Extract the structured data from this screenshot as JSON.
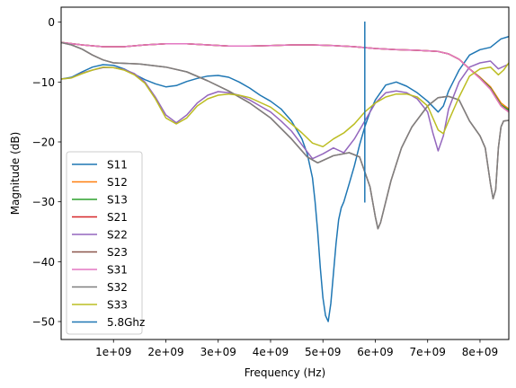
{
  "chart_data": {
    "type": "line",
    "title": "",
    "xlabel": "Frequency (Hz)",
    "ylabel": "Magnitude (dB)",
    "xlim": [
      0,
      8550000000.0
    ],
    "ylim": [
      -53,
      2.5
    ],
    "grid": false,
    "legend_position": "lower-left",
    "x_ticks": [
      {
        "value": 1000000000.0,
        "label": "1e+09"
      },
      {
        "value": 2000000000.0,
        "label": "2e+09"
      },
      {
        "value": 3000000000.0,
        "label": "3e+09"
      },
      {
        "value": 4000000000.0,
        "label": "4e+09"
      },
      {
        "value": 5000000000.0,
        "label": "5e+09"
      },
      {
        "value": 6000000000.0,
        "label": "6e+09"
      },
      {
        "value": 7000000000.0,
        "label": "7e+09"
      },
      {
        "value": 8000000000.0,
        "label": "8e+09"
      }
    ],
    "y_ticks": [
      {
        "value": 0,
        "label": "0"
      },
      {
        "value": -10,
        "label": "−10"
      },
      {
        "value": -20,
        "label": "−20"
      },
      {
        "value": -30,
        "label": "−30"
      },
      {
        "value": -40,
        "label": "−40"
      },
      {
        "value": -50,
        "label": "−50"
      }
    ],
    "series": [
      {
        "name": "S11",
        "color": "#1f77b4",
        "x": [
          0,
          200000000.0,
          400000000.0,
          600000000.0,
          800000000.0,
          1000000000.0,
          1200000000.0,
          1400000000.0,
          1600000000.0,
          1800000000.0,
          2000000000.0,
          2200000000.0,
          2400000000.0,
          2600000000.0,
          2800000000.0,
          3000000000.0,
          3200000000.0,
          3400000000.0,
          3600000000.0,
          3800000000.0,
          4000000000.0,
          4200000000.0,
          4400000000.0,
          4600000000.0,
          4700000000.0,
          4800000000.0,
          4850000000.0,
          4900000000.0,
          4950000000.0,
          5000000000.0,
          5050000000.0,
          5100000000.0,
          5150000000.0,
          5200000000.0,
          5250000000.0,
          5300000000.0,
          5350000000.0,
          5400000000.0,
          5500000000.0,
          5600000000.0,
          5700000000.0,
          5800000000.0,
          5900000000.0,
          6000000000.0,
          6200000000.0,
          6400000000.0,
          6600000000.0,
          6800000000.0,
          7000000000.0,
          7200000000.0,
          7300000000.0,
          7400000000.0,
          7600000000.0,
          7800000000.0,
          8000000000.0,
          8200000000.0,
          8400000000.0,
          8550000000.0
        ],
        "values": [
          -9.5,
          -9.2,
          -8.3,
          -7.5,
          -7.1,
          -7.2,
          -7.8,
          -8.7,
          -9.6,
          -10.3,
          -10.8,
          -10.6,
          -9.9,
          -9.4,
          -9.0,
          -8.9,
          -9.2,
          -10.0,
          -11.0,
          -12.2,
          -13.2,
          -14.5,
          -16.5,
          -19.5,
          -22.0,
          -26.0,
          -30.0,
          -35.0,
          -41.0,
          -46.0,
          -49.0,
          -50.0,
          -47.0,
          -42.0,
          -37.0,
          -33.0,
          -31.0,
          -30.0,
          -27.0,
          -24.0,
          -20.5,
          -17.5,
          -15.0,
          -13.0,
          -10.5,
          -10.0,
          -10.7,
          -11.8,
          -13.2,
          -15.0,
          -14.0,
          -11.5,
          -8.0,
          -5.5,
          -4.6,
          -4.2,
          -2.8,
          -2.4
        ]
      },
      {
        "name": "S12",
        "color": "#ff7f0e",
        "x": [
          0,
          400000000.0,
          800000000.0,
          1200000000.0,
          1600000000.0,
          2000000000.0,
          2400000000.0,
          2800000000.0,
          3200000000.0,
          3600000000.0,
          4000000000.0,
          4400000000.0,
          4800000000.0,
          5200000000.0,
          5600000000.0,
          6000000000.0,
          6400000000.0,
          6800000000.0,
          7200000000.0,
          7400000000.0,
          7600000000.0,
          7800000000.0,
          8000000000.0,
          8200000000.0,
          8400000000.0,
          8550000000.0
        ],
        "values": [
          -3.4,
          -3.8,
          -4.1,
          -4.1,
          -3.8,
          -3.6,
          -3.6,
          -3.8,
          -4.0,
          -4.0,
          -3.9,
          -3.8,
          -3.8,
          -3.9,
          -4.1,
          -4.4,
          -4.6,
          -4.7,
          -4.9,
          -5.3,
          -6.2,
          -7.8,
          -9.2,
          -10.8,
          -13.5,
          -14.5
        ]
      },
      {
        "name": "S13",
        "color": "#2ca02c",
        "x": [
          0,
          400000000.0,
          800000000.0,
          1200000000.0,
          1600000000.0,
          2000000000.0,
          2400000000.0,
          2800000000.0,
          3200000000.0,
          3600000000.0,
          4000000000.0,
          4400000000.0,
          4800000000.0,
          5200000000.0,
          5600000000.0,
          6000000000.0,
          6400000000.0,
          6800000000.0,
          7200000000.0,
          7400000000.0,
          7600000000.0,
          7800000000.0,
          8000000000.0,
          8200000000.0,
          8400000000.0,
          8550000000.0
        ],
        "values": [
          -3.4,
          -3.8,
          -4.1,
          -4.1,
          -3.8,
          -3.6,
          -3.6,
          -3.8,
          -4.0,
          -4.0,
          -3.9,
          -3.8,
          -3.8,
          -3.9,
          -4.1,
          -4.4,
          -4.6,
          -4.7,
          -4.9,
          -5.3,
          -6.2,
          -7.8,
          -9.3,
          -11.0,
          -13.8,
          -14.7
        ]
      },
      {
        "name": "S21",
        "color": "#d62728",
        "x": [
          0,
          400000000.0,
          800000000.0,
          1200000000.0,
          1600000000.0,
          2000000000.0,
          2400000000.0,
          2800000000.0,
          3200000000.0,
          3600000000.0,
          4000000000.0,
          4400000000.0,
          4800000000.0,
          5200000000.0,
          5600000000.0,
          6000000000.0,
          6400000000.0,
          6800000000.0,
          7200000000.0,
          7400000000.0,
          7600000000.0,
          7800000000.0,
          8000000000.0,
          8200000000.0,
          8400000000.0,
          8550000000.0
        ],
        "values": [
          -3.4,
          -3.8,
          -4.1,
          -4.1,
          -3.8,
          -3.6,
          -3.6,
          -3.8,
          -4.0,
          -4.0,
          -3.9,
          -3.8,
          -3.8,
          -3.9,
          -4.1,
          -4.4,
          -4.6,
          -4.7,
          -4.9,
          -5.3,
          -6.2,
          -7.8,
          -9.4,
          -11.2,
          -14.0,
          -15.0
        ]
      },
      {
        "name": "S22",
        "color": "#9467bd",
        "x": [
          0,
          200000000.0,
          400000000.0,
          600000000.0,
          800000000.0,
          1000000000.0,
          1200000000.0,
          1400000000.0,
          1600000000.0,
          1800000000.0,
          2000000000.0,
          2200000000.0,
          2400000000.0,
          2600000000.0,
          2800000000.0,
          3000000000.0,
          3200000000.0,
          3400000000.0,
          3600000000.0,
          3800000000.0,
          4000000000.0,
          4200000000.0,
          4400000000.0,
          4600000000.0,
          4800000000.0,
          5000000000.0,
          5200000000.0,
          5400000000.0,
          5600000000.0,
          5800000000.0,
          6000000000.0,
          6200000000.0,
          6400000000.0,
          6600000000.0,
          6800000000.0,
          7000000000.0,
          7100000000.0,
          7200000000.0,
          7300000000.0,
          7400000000.0,
          7600000000.0,
          7800000000.0,
          8000000000.0,
          8200000000.0,
          8350000000.0,
          8450000000.0,
          8550000000.0
        ],
        "values": [
          -9.5,
          -9.3,
          -8.5,
          -8.0,
          -7.6,
          -7.6,
          -7.9,
          -8.6,
          -10.0,
          -12.5,
          -15.5,
          -16.8,
          -15.5,
          -13.5,
          -12.2,
          -11.6,
          -11.8,
          -12.2,
          -13.0,
          -14.0,
          -15.0,
          -16.5,
          -18.2,
          -20.5,
          -22.8,
          -22.0,
          -21.0,
          -21.8,
          -19.5,
          -16.5,
          -13.5,
          -11.8,
          -11.5,
          -11.8,
          -12.8,
          -15.0,
          -18.5,
          -21.5,
          -19.0,
          -14.5,
          -10.0,
          -7.5,
          -6.8,
          -6.5,
          -7.8,
          -7.4,
          -7.0
        ]
      },
      {
        "name": "S23",
        "color": "#8c564b",
        "x": [
          0,
          200000000.0,
          400000000.0,
          600000000.0,
          800000000.0,
          1000000000.0,
          1500000000.0,
          2000000000.0,
          2400000000.0,
          2800000000.0,
          3200000000.0,
          3600000000.0,
          4000000000.0,
          4400000000.0,
          4700000000.0,
          4900000000.0,
          5200000000.0,
          5500000000.0,
          5700000000.0,
          5900000000.0,
          6000000000.0,
          6050000000.0,
          6100000000.0,
          6300000000.0,
          6500000000.0,
          6700000000.0,
          7000000000.0,
          7200000000.0,
          7400000000.0,
          7600000000.0,
          7800000000.0,
          8000000000.0,
          8100000000.0,
          8200000000.0,
          8250000000.0,
          8300000000.0,
          8350000000.0,
          8400000000.0,
          8450000000.0,
          8550000000.0
        ],
        "values": [
          -3.4,
          -3.8,
          -4.5,
          -5.5,
          -6.3,
          -6.8,
          -7.0,
          -7.5,
          -8.3,
          -9.8,
          -11.5,
          -13.5,
          -16.0,
          -19.5,
          -22.5,
          -23.5,
          -22.3,
          -21.8,
          -22.5,
          -27.5,
          -32.5,
          -34.5,
          -33.5,
          -26.5,
          -21.0,
          -17.5,
          -14.0,
          -12.6,
          -12.4,
          -13.0,
          -16.5,
          -19.0,
          -21.0,
          -27.0,
          -29.5,
          -28.0,
          -21.0,
          -17.5,
          -16.5,
          -16.4
        ]
      },
      {
        "name": "S31",
        "color": "#e377c2",
        "x": [
          0,
          400000000.0,
          800000000.0,
          1200000000.0,
          1600000000.0,
          2000000000.0,
          2400000000.0,
          2800000000.0,
          3200000000.0,
          3600000000.0,
          4000000000.0,
          4400000000.0,
          4800000000.0,
          5200000000.0,
          5600000000.0,
          6000000000.0,
          6400000000.0,
          6800000000.0,
          7200000000.0,
          7400000000.0,
          7600000000.0,
          7800000000.0,
          8000000000.0,
          8200000000.0,
          8400000000.0,
          8550000000.0
        ],
        "values": [
          -3.4,
          -3.8,
          -4.1,
          -4.1,
          -3.8,
          -3.6,
          -3.6,
          -3.8,
          -4.0,
          -4.0,
          -3.9,
          -3.8,
          -3.8,
          -3.9,
          -4.1,
          -4.4,
          -4.6,
          -4.7,
          -4.9,
          -5.3,
          -6.2,
          -7.8,
          -9.4,
          -11.2,
          -14.0,
          -15.0
        ]
      },
      {
        "name": "S32",
        "color": "#7f7f7f",
        "x": [
          0,
          200000000.0,
          400000000.0,
          600000000.0,
          800000000.0,
          1000000000.0,
          1500000000.0,
          2000000000.0,
          2400000000.0,
          2800000000.0,
          3200000000.0,
          3600000000.0,
          4000000000.0,
          4400000000.0,
          4700000000.0,
          4900000000.0,
          5200000000.0,
          5500000000.0,
          5700000000.0,
          5900000000.0,
          6000000000.0,
          6050000000.0,
          6100000000.0,
          6300000000.0,
          6500000000.0,
          6700000000.0,
          7000000000.0,
          7200000000.0,
          7400000000.0,
          7600000000.0,
          7800000000.0,
          8000000000.0,
          8100000000.0,
          8200000000.0,
          8250000000.0,
          8300000000.0,
          8350000000.0,
          8400000000.0,
          8450000000.0,
          8550000000.0
        ],
        "values": [
          -3.4,
          -3.8,
          -4.5,
          -5.5,
          -6.3,
          -6.8,
          -7.0,
          -7.5,
          -8.3,
          -9.8,
          -11.5,
          -13.5,
          -16.0,
          -19.5,
          -22.5,
          -23.5,
          -22.3,
          -21.8,
          -22.5,
          -27.5,
          -32.5,
          -34.5,
          -33.5,
          -26.5,
          -21.0,
          -17.5,
          -14.0,
          -12.6,
          -12.4,
          -13.0,
          -16.5,
          -19.0,
          -21.0,
          -27.0,
          -29.5,
          -28.0,
          -21.0,
          -17.5,
          -16.5,
          -16.4
        ]
      },
      {
        "name": "S33",
        "color": "#bcbd22",
        "x": [
          0,
          200000000.0,
          400000000.0,
          600000000.0,
          800000000.0,
          1000000000.0,
          1200000000.0,
          1400000000.0,
          1600000000.0,
          1800000000.0,
          2000000000.0,
          2200000000.0,
          2400000000.0,
          2600000000.0,
          2800000000.0,
          3000000000.0,
          3200000000.0,
          3400000000.0,
          3600000000.0,
          3800000000.0,
          4000000000.0,
          4200000000.0,
          4400000000.0,
          4600000000.0,
          4800000000.0,
          5000000000.0,
          5200000000.0,
          5400000000.0,
          5600000000.0,
          5800000000.0,
          6000000000.0,
          6200000000.0,
          6400000000.0,
          6600000000.0,
          6800000000.0,
          7000000000.0,
          7200000000.0,
          7300000000.0,
          7400000000.0,
          7600000000.0,
          7800000000.0,
          8000000000.0,
          8200000000.0,
          8350000000.0,
          8450000000.0,
          8550000000.0
        ],
        "values": [
          -9.5,
          -9.3,
          -8.6,
          -8.0,
          -7.5,
          -7.6,
          -8.0,
          -8.8,
          -10.2,
          -12.8,
          -16.0,
          -17.0,
          -16.0,
          -14.0,
          -12.8,
          -12.2,
          -12.0,
          -12.2,
          -12.6,
          -13.4,
          -14.2,
          -15.5,
          -17.0,
          -18.5,
          -20.2,
          -20.8,
          -19.5,
          -18.5,
          -17.0,
          -15.0,
          -13.5,
          -12.5,
          -12.0,
          -12.0,
          -12.5,
          -14.0,
          -18.0,
          -18.6,
          -16.5,
          -12.5,
          -9.0,
          -7.8,
          -7.5,
          -8.8,
          -8.0,
          -6.8
        ]
      },
      {
        "name": "5.8Ghz",
        "color": "#1f77b4",
        "x": [
          5800000000.0,
          5800000000.0
        ],
        "values": [
          0,
          -30
        ]
      }
    ]
  }
}
